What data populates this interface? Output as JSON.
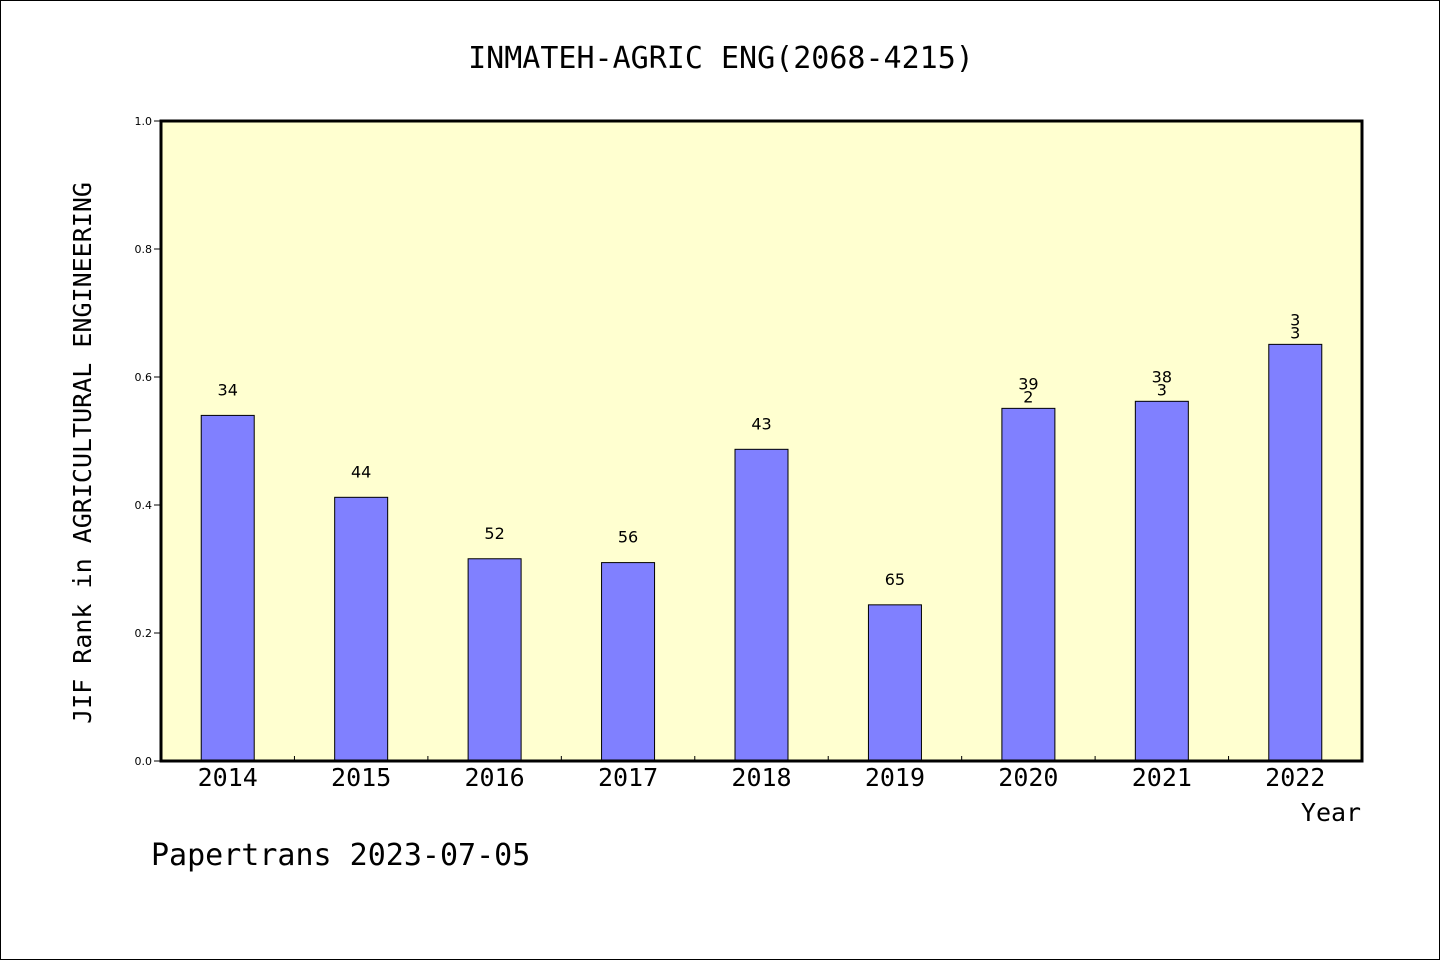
{
  "chart_data": {
    "type": "bar",
    "title": "INMATEH-AGRIC ENG(2068-4215)",
    "xlabel": "Year",
    "ylabel": "JIF Rank in AGRICULTURAL ENGINEERING",
    "categories": [
      "2014",
      "2015",
      "2016",
      "2017",
      "2018",
      "2019",
      "2020",
      "2021",
      "2022"
    ],
    "values": [
      0.54,
      0.412,
      0.316,
      0.31,
      0.487,
      0.244,
      0.551,
      0.562,
      0.651
    ],
    "data_labels": [
      [
        "34"
      ],
      [
        "44"
      ],
      [
        "52"
      ],
      [
        "56"
      ],
      [
        "43"
      ],
      [
        "65"
      ],
      [
        "39",
        "2"
      ],
      [
        "38",
        "3"
      ],
      [
        "3",
        "3"
      ]
    ],
    "ylim": [
      0,
      1.0
    ],
    "yticks": [
      "0.0",
      "0.2",
      "0.4",
      "0.6",
      "0.8",
      "1.0"
    ],
    "grid": false,
    "colors": {
      "bar": "#8080ff",
      "plot_background": "#ffffd0",
      "axis": "#000000"
    }
  },
  "footer": "Papertrans 2023-07-05"
}
